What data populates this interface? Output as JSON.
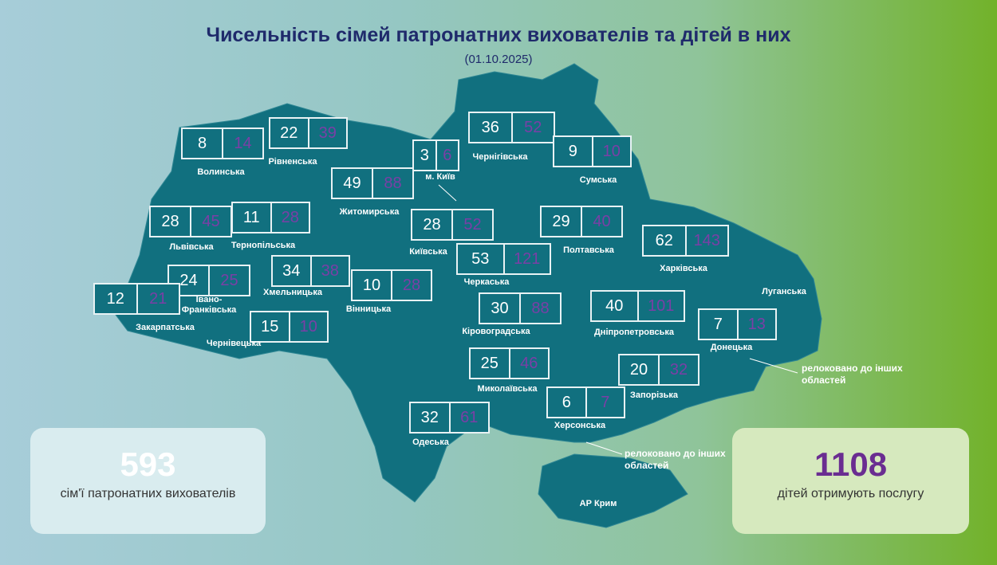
{
  "header": {
    "title": "Чисельність сімей патронатних вихователів та дітей в них",
    "date": "(01.10.2025)"
  },
  "regions": [
    {
      "name": "Волинська",
      "families": 8,
      "children": 14
    },
    {
      "name": "Рівненська",
      "families": 22,
      "children": 39
    },
    {
      "name": "Житомирська",
      "families": 49,
      "children": 88
    },
    {
      "name": "м. Київ",
      "families": 3,
      "children": 6
    },
    {
      "name": "Чернігівська",
      "families": 36,
      "children": 52
    },
    {
      "name": "Сумська",
      "families": 9,
      "children": 10
    },
    {
      "name": "Львівська",
      "families": 28,
      "children": 45
    },
    {
      "name": "Тернопільська",
      "families": 11,
      "children": 28
    },
    {
      "name": "Київська",
      "families": 28,
      "children": 52
    },
    {
      "name": "Полтавська",
      "families": 29,
      "children": 40
    },
    {
      "name": "Харківська",
      "families": 62,
      "children": 143
    },
    {
      "name": "Черкаська",
      "families": 53,
      "children": 121
    },
    {
      "name": "Хмельницька",
      "families": 34,
      "children": 38
    },
    {
      "name": "Івано-Франківська",
      "families": 24,
      "children": 25
    },
    {
      "name": "Вінницька",
      "families": 10,
      "children": 28
    },
    {
      "name": "Закарпатська",
      "families": 12,
      "children": 21
    },
    {
      "name": "Луганська"
    },
    {
      "name": "Кіровоградська",
      "families": 30,
      "children": 88
    },
    {
      "name": "Дніпропетровська",
      "families": 40,
      "children": 101
    },
    {
      "name": "Чернівецька",
      "families": 15,
      "children": 10
    },
    {
      "name": "Донецька",
      "families": 7,
      "children": 13
    },
    {
      "name": "Миколаївська",
      "families": 25,
      "children": 46
    },
    {
      "name": "Запорізька",
      "families": 20,
      "children": 32
    },
    {
      "name": "Одеська",
      "families": 32,
      "children": 61
    },
    {
      "name": "Херсонська",
      "families": 6,
      "children": 7
    },
    {
      "name": "АР Крим"
    }
  ],
  "notes": [
    "релоковано до інших областей",
    "релоковано до інших областей"
  ],
  "totals": {
    "families": {
      "value": 593,
      "label": "сім'ї патронатних вихователів"
    },
    "children": {
      "value": 1108,
      "label": "дітей отримують послугу"
    }
  }
}
